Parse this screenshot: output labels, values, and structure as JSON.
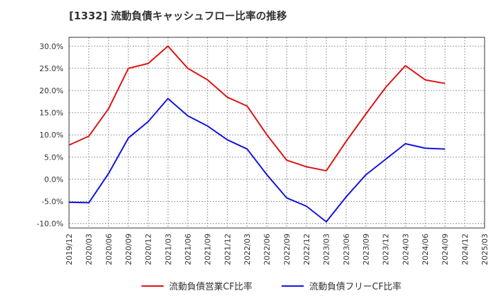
{
  "chart_data": {
    "type": "line",
    "title": "[1332]  流動負債キャッシュフロー比率の推移",
    "xlabel": "",
    "ylabel": "",
    "ylim": [
      -11,
      32
    ],
    "y_ticks": [
      -10,
      -5,
      0,
      5,
      10,
      15,
      20,
      25,
      30
    ],
    "y_tick_labels": [
      "-10.0%",
      "-5.0%",
      "0.0%",
      "5.0%",
      "10.0%",
      "15.0%",
      "20.0%",
      "25.0%",
      "30.0%"
    ],
    "x_tick_labels": [
      "2019/12",
      "2020/03",
      "2020/06",
      "2020/09",
      "2020/12",
      "2021/03",
      "2021/06",
      "2021/09",
      "2021/12",
      "2022/03",
      "2022/06",
      "2022/09",
      "2022/12",
      "2023/03",
      "2023/06",
      "2023/09",
      "2023/12",
      "2024/03",
      "2024/06",
      "2024/09",
      "2024/12",
      "2025/03"
    ],
    "grid": true,
    "legend_position": "bottom",
    "x": [
      "2019/12",
      "2020/03",
      "2020/06",
      "2020/09",
      "2020/12",
      "2021/03",
      "2021/06",
      "2021/09",
      "2021/12",
      "2022/03",
      "2022/06",
      "2022/09",
      "2022/12",
      "2023/03",
      "2023/06",
      "2023/09",
      "2023/12",
      "2024/03",
      "2024/06",
      "2024/09"
    ],
    "series": [
      {
        "name": "流動負債営業CF比率",
        "color": "#dd1111",
        "values": [
          7.7,
          9.7,
          15.9,
          25.0,
          26.1,
          30.0,
          25.0,
          22.4,
          18.5,
          16.5,
          10.0,
          4.3,
          2.8,
          1.9,
          8.5,
          14.7,
          20.7,
          25.6,
          22.4,
          21.6
        ]
      },
      {
        "name": "流動負債フリーCF比率",
        "color": "#1111dd",
        "values": [
          -5.2,
          -5.3,
          1.3,
          9.3,
          13.0,
          18.2,
          14.3,
          12.0,
          8.9,
          6.8,
          1.0,
          -4.2,
          -6.1,
          -9.6,
          -4.0,
          1.0,
          4.5,
          8.0,
          7.0,
          6.8
        ]
      }
    ]
  }
}
